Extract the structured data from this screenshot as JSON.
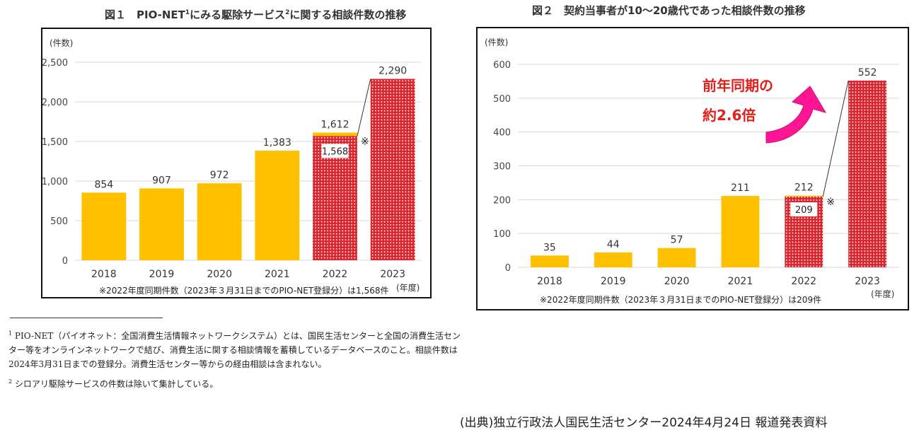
{
  "footnotes": {
    "fn1_mark": "1",
    "fn1_text": "PIO-NET（パイオネット：全国消費生活情報ネットワークシステム）とは、国民生活センターと全国の消費生活センター等をオンラインネットワークで結び、消費生活に関する相談情報を蓄積しているデータベースのこと。相談件数は2024年3月31日までの登録分。消費生活センター等からの経由相談は含まれない。",
    "fn2_mark": "2",
    "fn2_text": "シロアリ駆除サービスの件数は除いて集計している。"
  },
  "source": "(出典)独立行政法人国民生活センター2024年4月24日 報道発表資料",
  "colors": {
    "bar": "#FFC000",
    "hatch": "#D9262E",
    "callout": "#FF1493",
    "callout_text": "#E0201A"
  },
  "chart_data": [
    {
      "type": "bar",
      "title_prefix": "図１　PIO-NET",
      "title_sup1": "1",
      "title_mid": "にみる駆除サービス",
      "title_sup2": "2",
      "title_suffix": "に関する相談件数の推移",
      "ylabel": "(件数)",
      "xlabel": "(年度)",
      "categories": [
        "2018",
        "2019",
        "2020",
        "2021",
        "2022",
        "2023"
      ],
      "values": [
        854,
        907,
        972,
        1383,
        1612,
        2290
      ],
      "value_labels": [
        "854",
        "907",
        "972",
        "1,383",
        "1,612",
        "2,290"
      ],
      "same_period_index": 4,
      "same_period_value": 1568,
      "same_period_label": "1,568",
      "same_period_mark": "※",
      "hatched_indices": [
        4,
        5
      ],
      "ylim": [
        0,
        2500
      ],
      "yticks": [
        0,
        500,
        1000,
        1500,
        2000,
        2500
      ],
      "ytick_labels": [
        "0",
        "500",
        "1,000",
        "1,500",
        "2,000",
        "2,500"
      ],
      "grid": true,
      "note": "※2022年度同期件数（2023年３月31日までのPIO-NET登録分）は1,568件"
    },
    {
      "type": "bar",
      "title": "図２　契約当事者が10～20歳代であった相談件数の推移",
      "ylabel": "(件数)",
      "xlabel": "(年度)",
      "categories": [
        "2018",
        "2019",
        "2020",
        "2021",
        "2022",
        "2023"
      ],
      "values": [
        35,
        44,
        57,
        211,
        212,
        552
      ],
      "value_labels": [
        "35",
        "44",
        "57",
        "211",
        "212",
        "552"
      ],
      "same_period_index": 4,
      "same_period_value": 209,
      "same_period_label": "209",
      "same_period_mark": "※",
      "hatched_indices": [
        4,
        5
      ],
      "ylim": [
        0,
        600
      ],
      "yticks": [
        0,
        100,
        200,
        300,
        400,
        500,
        600
      ],
      "ytick_labels": [
        "0",
        "100",
        "200",
        "300",
        "400",
        "500",
        "600"
      ],
      "grid": true,
      "callout_line1": "前年同期の",
      "callout_line2": "約2.6倍",
      "note": "※2022年度同期件数（2023年３月31日までのPIO-NET登録分）は209件"
    }
  ]
}
